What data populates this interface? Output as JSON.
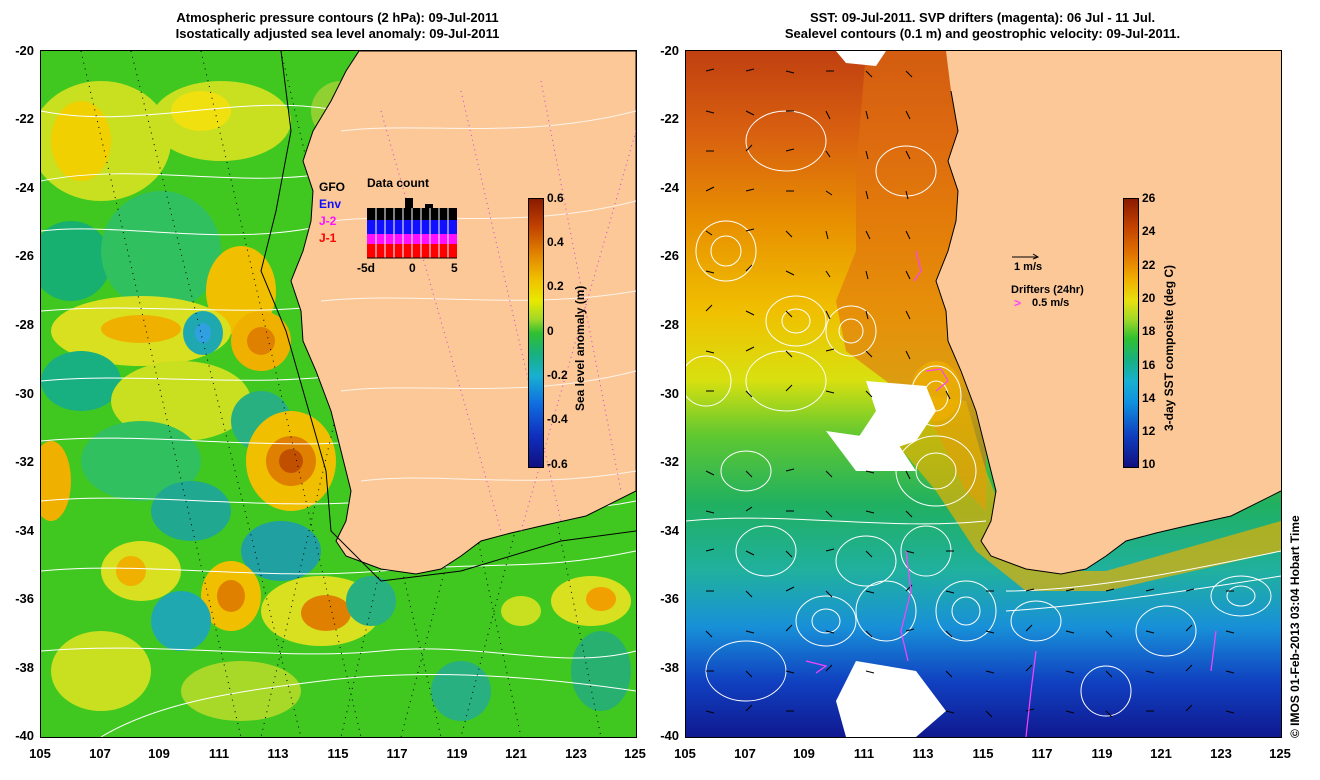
{
  "left_panel": {
    "title_line1": "Atmospheric pressure contours (2 hPa): 09-Jul-2011",
    "title_line2": "Isostatically adjusted sea level anomaly: 09-Jul-2011",
    "y_ticks": [
      "-20",
      "-22",
      "-24",
      "-26",
      "-28",
      "-30",
      "-32",
      "-34",
      "-36",
      "-38",
      "-40"
    ],
    "x_ticks": [
      "105",
      "107",
      "109",
      "111",
      "113",
      "115",
      "117",
      "119",
      "121",
      "123",
      "125"
    ],
    "colorbar": {
      "title": "Sea level anomaly (m)",
      "labels": [
        "0.6",
        "0.4",
        "0.2",
        "0",
        "-0.2",
        "-0.4",
        "-0.6"
      ],
      "range": [
        -0.6,
        0.6
      ]
    },
    "data_count": {
      "title": "Data count",
      "series": [
        "GFO",
        "Env",
        "J-2",
        "J-1"
      ],
      "series_colors": [
        "#000000",
        "#1010ff",
        "#ff10ff",
        "#ff0000"
      ],
      "x_labels": [
        "-5d",
        "0",
        "5"
      ]
    }
  },
  "right_panel": {
    "title_line1": "SST: 09-Jul-2011. SVP drifters (magenta): 06 Jul - 11 Jul.",
    "title_line2": "Sealevel contours (0.1 m) and geostrophic velocity: 09-Jul-2011.",
    "y_ticks": [
      "-20",
      "-22",
      "-24",
      "-26",
      "-28",
      "-30",
      "-32",
      "-34",
      "-36",
      "-38",
      "-40"
    ],
    "x_ticks": [
      "105",
      "107",
      "109",
      "111",
      "113",
      "115",
      "117",
      "119",
      "121",
      "123",
      "125"
    ],
    "colorbar": {
      "title": "3-day SST composite (deg C)",
      "labels": [
        "26",
        "24",
        "22",
        "20",
        "18",
        "16",
        "14",
        "12",
        "10"
      ],
      "range": [
        10,
        26
      ]
    },
    "velocity_legend": "1 m/s",
    "drifter_legend_title": "Drifters (24hr)",
    "drifter_legend_value": "0.5 m/s"
  },
  "credit": "© IMOS 01-Feb-2013 03:04 Hobart Time",
  "colors": {
    "land": "#fcc898",
    "contour": "#ffffff",
    "drifter": "#ff40ff"
  }
}
